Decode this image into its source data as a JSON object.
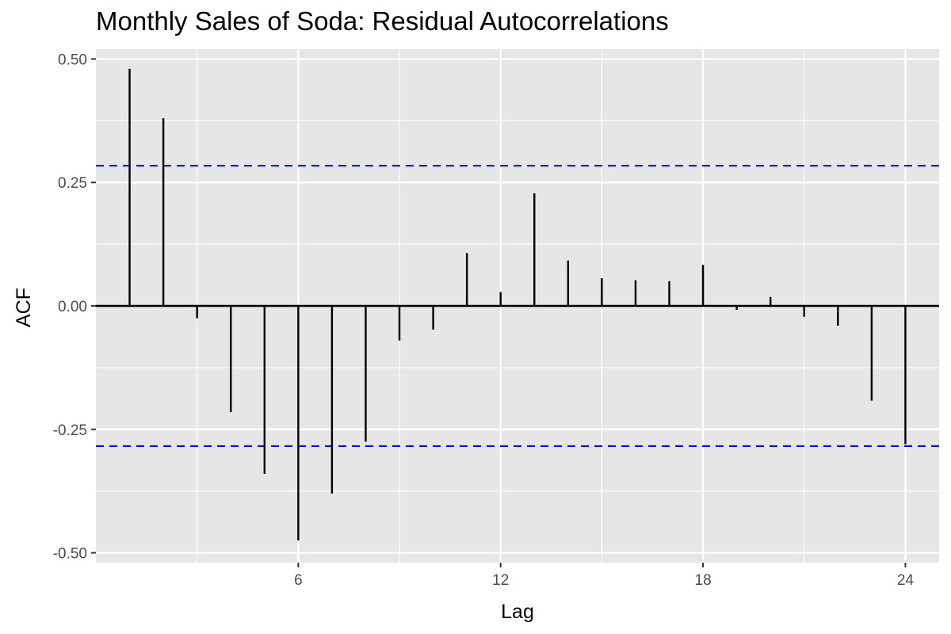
{
  "chart_data": {
    "type": "bar",
    "title": "Monthly Sales of Soda: Residual Autocorrelations",
    "xlabel": "Lag",
    "ylabel": "ACF",
    "x": [
      1,
      2,
      3,
      4,
      5,
      6,
      7,
      8,
      9,
      10,
      11,
      12,
      13,
      14,
      15,
      16,
      17,
      18,
      19,
      20,
      21,
      22,
      23,
      24
    ],
    "values": [
      0.48,
      0.38,
      -0.025,
      -0.215,
      -0.34,
      -0.475,
      -0.38,
      -0.275,
      -0.07,
      -0.048,
      0.107,
      0.028,
      0.228,
      0.092,
      0.056,
      0.052,
      0.05,
      0.083,
      -0.008,
      0.018,
      -0.022,
      -0.04,
      -0.192,
      -0.28
    ],
    "confidence_bounds": [
      0.284,
      -0.284
    ],
    "xlim": [
      0,
      25
    ],
    "ylim": [
      -0.52,
      0.52
    ],
    "x_ticks": [
      6,
      12,
      18,
      24
    ],
    "x_tick_labels": [
      "6",
      "12",
      "18",
      "24"
    ],
    "y_ticks": [
      -0.5,
      -0.25,
      0,
      0.25,
      0.5
    ],
    "y_tick_labels": [
      "-0.50",
      "-0.25",
      "0.00",
      "0.25",
      "0.50"
    ],
    "grid": true,
    "colors": {
      "panel": "#e6e6e6",
      "grid": "#ffffff",
      "spike": "#000000",
      "bound": "#0000ff"
    }
  }
}
